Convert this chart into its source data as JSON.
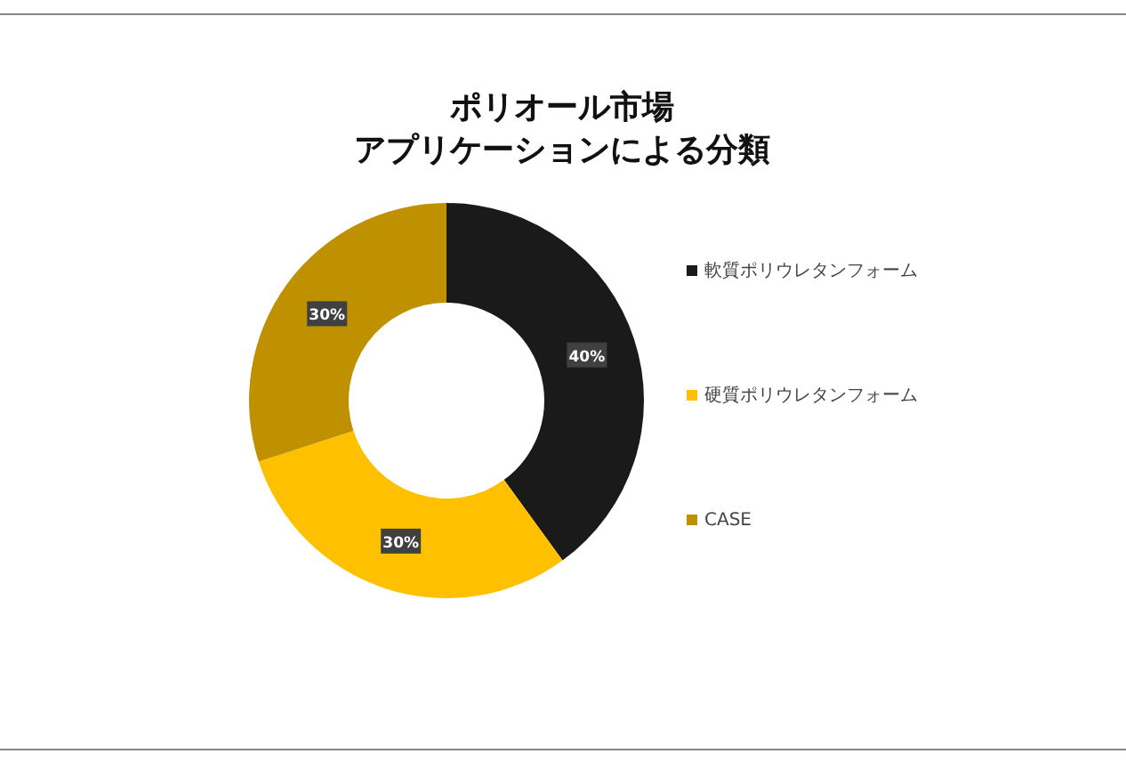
{
  "chart_data": {
    "type": "donut",
    "title": "ポリオール市場",
    "subtitle": "アプリケーションによる分類",
    "categories": [
      "軟質ポリウレタンフォーム",
      "硬質ポリウレタンフォーム",
      "CASE"
    ],
    "values": [
      40,
      30,
      30
    ],
    "colors": [
      "#1a1a1a",
      "#ffc000",
      "#bf9000"
    ],
    "value_labels": [
      "40%",
      "30%",
      "30%"
    ],
    "legend": "right"
  }
}
